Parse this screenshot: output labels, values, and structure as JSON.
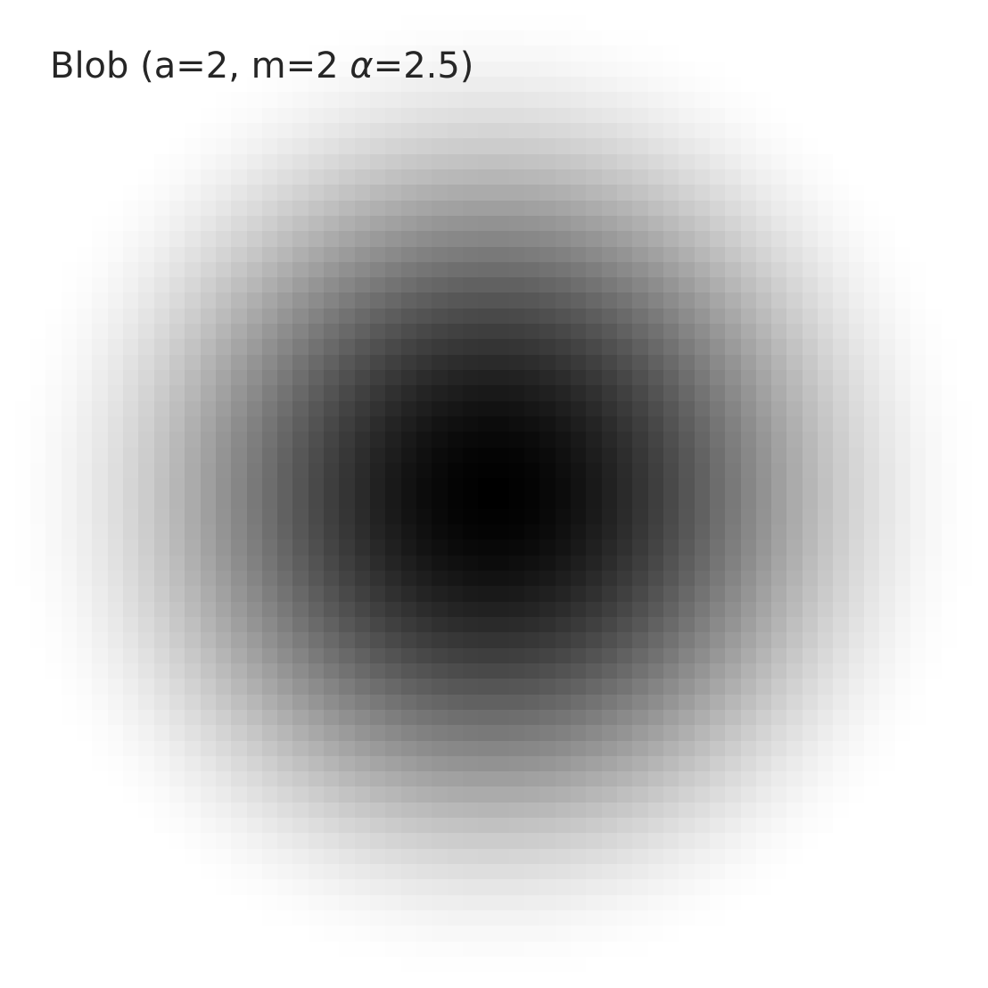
{
  "chart_data": {
    "type": "heatmap",
    "title": "Blob (a=2, m=2 α=2.5)",
    "title_parts": {
      "prefix": "Blob (a=2, m=2 ",
      "alpha_symbol": "α",
      "suffix": "=2.5)"
    },
    "blob": {
      "a": 2,
      "m": 2,
      "alpha": 2.5
    },
    "colormap": "gray_r",
    "grid_resolution": 64,
    "extent": [
      -2,
      2
    ],
    "value_range": [
      0,
      1
    ],
    "axes_visible": false,
    "colorbar": false
  }
}
